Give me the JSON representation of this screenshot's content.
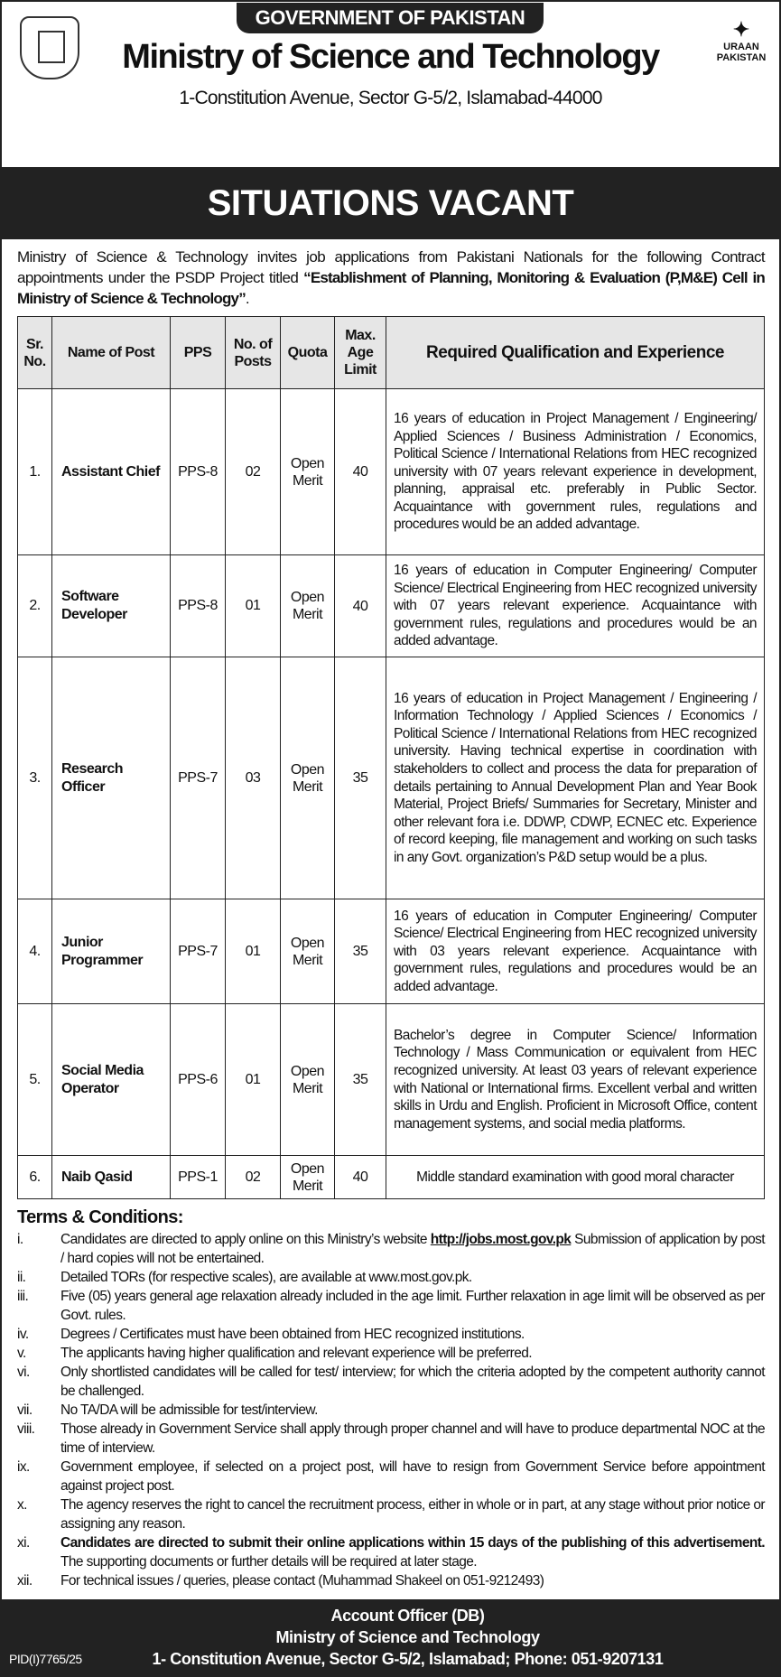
{
  "header": {
    "govt": "GOVERNMENT OF PAKISTAN",
    "ministry": "Ministry of Science and Technology",
    "address": "1-Constitution Avenue, Sector G-5/2, Islamabad-44000",
    "logo_right": "URAAN PAKISTAN",
    "emblem": "government-of-pakistan-emblem"
  },
  "banner": "SITUATIONS VACANT",
  "intro": {
    "text": "Ministry of Science & Technology invites job applications from Pakistani Nationals for the following Contract appointments under the PSDP Project titled ",
    "bold": "“Establishment of Planning, Monitoring & Evaluation (P,M&E) Cell in Ministry of Science & Technology”",
    "end": "."
  },
  "table": {
    "headers": [
      "Sr. No.",
      "Name of Post",
      "PPS",
      "No. of Posts",
      "Quota",
      "Max. Age Limit",
      "Required Qualification and Experience"
    ],
    "rows": [
      {
        "sr": "1.",
        "name": "Assistant Chief",
        "pps": "PPS-8",
        "posts": "02",
        "quota": "Open Merit",
        "age": "40",
        "qual": "16 years of education in Project Management / Engineering/ Applied Sciences / Business Administration / Economics, Political Science / International Relations from HEC recognized university with 07 years relevant experience in development, planning, appraisal etc. preferably in Public Sector. Acquaintance with government rules, regulations and procedures would be an added advantage."
      },
      {
        "sr": "2.",
        "name": "Software Developer",
        "pps": "PPS-8",
        "posts": "01",
        "quota": "Open Merit",
        "age": "40",
        "qual": "16 years of education in Computer Engineering/ Computer Science/ Electrical Engineering from HEC recognized university with 07 years relevant experience. Acquaintance with government rules, regulations and procedures would be an added advantage."
      },
      {
        "sr": "3.",
        "name": "Research Officer",
        "pps": "PPS-7",
        "posts": "03",
        "quota": "Open Merit",
        "age": "35",
        "qual": "16 years of education in Project Management / Engineering / Information Technology / Applied Sciences / Economics / Political Science / International Relations from HEC recognized university. Having technical expertise in coordination with stakeholders to collect and process the data for preparation of details pertaining to Annual Development Plan and Year Book Material, Project Briefs/ Summaries for Secretary, Minister and other relevant fora i.e. DDWP, CDWP, ECNEC etc. Experience of record keeping, file management and working on such tasks in any Govt. organization’s P&D setup would be a plus."
      },
      {
        "sr": "4.",
        "name": "Junior Programmer",
        "pps": "PPS-7",
        "posts": "01",
        "quota": "Open Merit",
        "age": "35",
        "qual": "16 years of education in Computer Engineering/ Computer Science/ Electrical Engineering from HEC recognized university with 03 years relevant experience. Acquaintance with government rules, regulations and procedures would be an added advantage."
      },
      {
        "sr": "5.",
        "name": "Social Media Operator",
        "pps": "PPS-6",
        "posts": "01",
        "quota": "Open Merit",
        "age": "35",
        "qual": "Bachelor’s degree in Computer Science/ Information Technology / Mass Communication or equivalent from HEC recognized university. At least 03 years of relevant experience with National or International firms. Excellent verbal and written skills in Urdu and English. Proficient in Microsoft Office, content management systems, and social media platforms."
      },
      {
        "sr": "6.",
        "name": "Naib Qasid",
        "pps": "PPS-1",
        "posts": "02",
        "quota": "Open Merit",
        "age": "40",
        "qual": "Middle standard examination with good moral character"
      }
    ]
  },
  "terms": {
    "title": "Terms & Conditions:",
    "items": [
      {
        "n": "i.",
        "pre": "Candidates are directed to apply online on this Ministry’s website ",
        "link": "http://jobs.most.gov.pk",
        "post": " Submission of application by post / hard copies will not be entertained."
      },
      {
        "n": "ii.",
        "post": "Detailed TORs (for respective scales), are available at www.most.gov.pk."
      },
      {
        "n": "iii.",
        "post": "Five (05) years general age relaxation already included in the age limit. Further relaxation in age limit will be observed as per Govt. rules."
      },
      {
        "n": "iv.",
        "post": "Degrees / Certificates must have been obtained from HEC recognized institutions."
      },
      {
        "n": "v.",
        "post": "The applicants having higher qualification and relevant experience will be preferred."
      },
      {
        "n": "vi.",
        "post": "Only shortlisted candidates will be called for test/ interview; for which the criteria adopted by the competent authority cannot be challenged."
      },
      {
        "n": "vii.",
        "post": "No TA/DA will be admissible for test/interview."
      },
      {
        "n": "viii.",
        "post": "Those already in Government Service shall apply through proper channel and will have to produce departmental NOC at the time of interview."
      },
      {
        "n": "ix.",
        "post": "Government employee, if selected on a project post, will have to resign from Government Service before appointment against project post."
      },
      {
        "n": "x.",
        "post": "The agency reserves the right to cancel the recruitment process, either in whole or in part, at any stage without prior notice or assigning any reason."
      },
      {
        "n": "xi.",
        "bold": "Candidates are directed to submit their online applications within 15 days of the publishing of this advertisement.",
        "post": " The supporting documents or further details will be required at later stage."
      },
      {
        "n": "xii.",
        "post": "For technical issues / queries, please contact (Muhammad Shakeel on 051-9212493)"
      }
    ]
  },
  "footer": {
    "line1": "Account Officer (DB)",
    "line2": "Ministry of Science and Technology",
    "line3": "1- Constitution Avenue, Sector G-5/2, Islamabad; Phone: 051-9207131",
    "pid": "PID(I)7765/25"
  }
}
